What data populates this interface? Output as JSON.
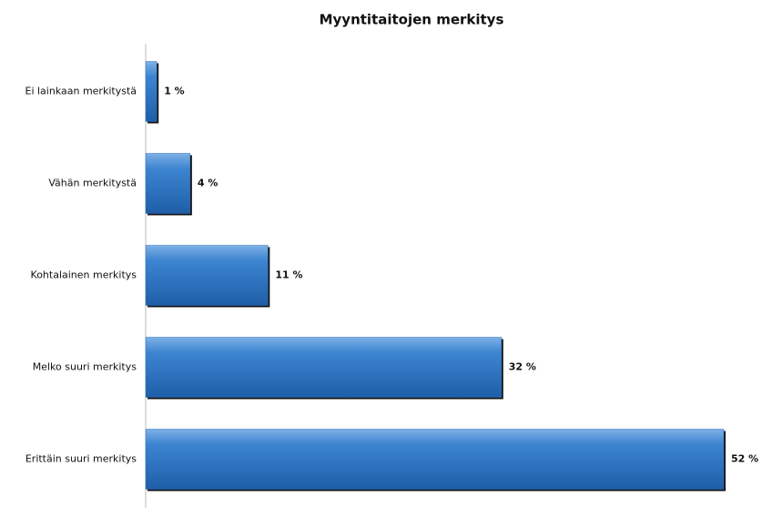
{
  "chart_data": {
    "type": "bar",
    "orientation": "horizontal",
    "title": "Myyntitaitojen merkitys",
    "categories": [
      "Ei lainkaan merkitystä",
      "Vähän merkitystä",
      "Kohtalainen merkitys",
      "Melko suuri merkitys",
      "Erittäin suuri merkitys"
    ],
    "values": [
      1,
      4,
      11,
      32,
      52
    ],
    "value_labels": [
      "1 %",
      "4 %",
      "11 %",
      "32 %",
      "52 %"
    ],
    "color": "#2f73bd",
    "xlim": [
      0,
      52
    ]
  }
}
